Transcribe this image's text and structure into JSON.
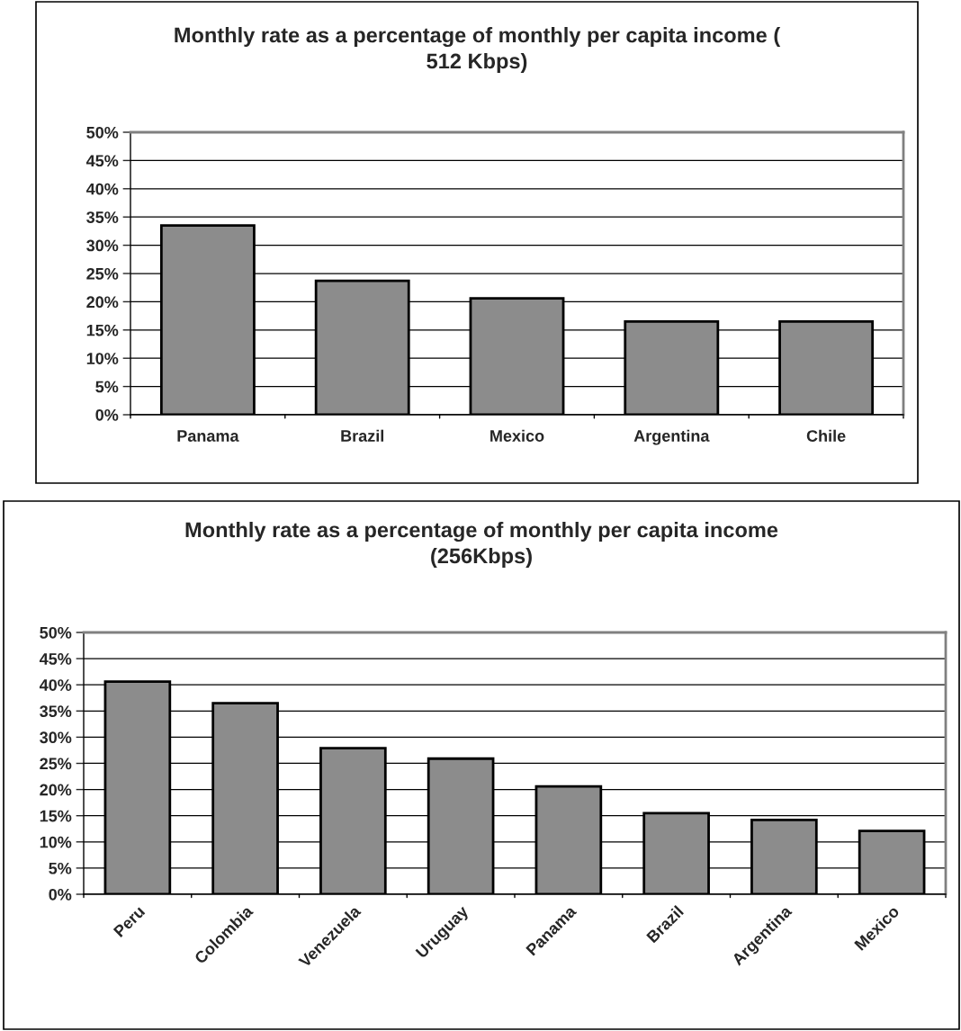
{
  "chart_data": [
    {
      "type": "bar",
      "title": "Monthly rate as a percentage of monthly per capita income (\n512 Kbps)",
      "categories": [
        "Panama",
        "Brazil",
        "Mexico",
        "Argentina",
        "Chile"
      ],
      "values": [
        33.5,
        23.7,
        20.6,
        16.5,
        16.5
      ],
      "color": "#8c8c8c",
      "ylim": [
        0,
        50
      ],
      "yticks": [
        {
          "value": 0,
          "label": "0%"
        },
        {
          "value": 5,
          "label": "5%"
        },
        {
          "value": 10,
          "label": "10%"
        },
        {
          "value": 15,
          "label": "15%"
        },
        {
          "value": 20,
          "label": "20%"
        },
        {
          "value": 25,
          "label": "25%"
        },
        {
          "value": 30,
          "label": "30%"
        },
        {
          "value": 35,
          "label": "35%"
        },
        {
          "value": 40,
          "label": "40%"
        },
        {
          "value": 45,
          "label": "45%"
        },
        {
          "value": 50,
          "label": "50%"
        }
      ],
      "grid": "y",
      "legend": false
    },
    {
      "type": "bar",
      "title": "Monthly rate as a percentage of monthly per capita income\n(256Kbps)",
      "categories": [
        "Peru",
        "Colombia",
        "Venezuela",
        "Uruguay",
        "Panama",
        "Brazil",
        "Argentina",
        "Mexico"
      ],
      "values": [
        40.6,
        36.5,
        27.9,
        25.9,
        20.6,
        15.5,
        14.2,
        12.1
      ],
      "color": "#8c8c8c",
      "ylim": [
        0,
        50
      ],
      "yticks": [
        {
          "value": 0,
          "label": "0%"
        },
        {
          "value": 5,
          "label": "5%"
        },
        {
          "value": 10,
          "label": "10%"
        },
        {
          "value": 15,
          "label": "15%"
        },
        {
          "value": 20,
          "label": "20%"
        },
        {
          "value": 25,
          "label": "25%"
        },
        {
          "value": 30,
          "label": "30%"
        },
        {
          "value": 35,
          "label": "35%"
        },
        {
          "value": 40,
          "label": "40%"
        },
        {
          "value": 45,
          "label": "45%"
        },
        {
          "value": 50,
          "label": "50%"
        }
      ],
      "grid": "y",
      "legend": false
    }
  ]
}
